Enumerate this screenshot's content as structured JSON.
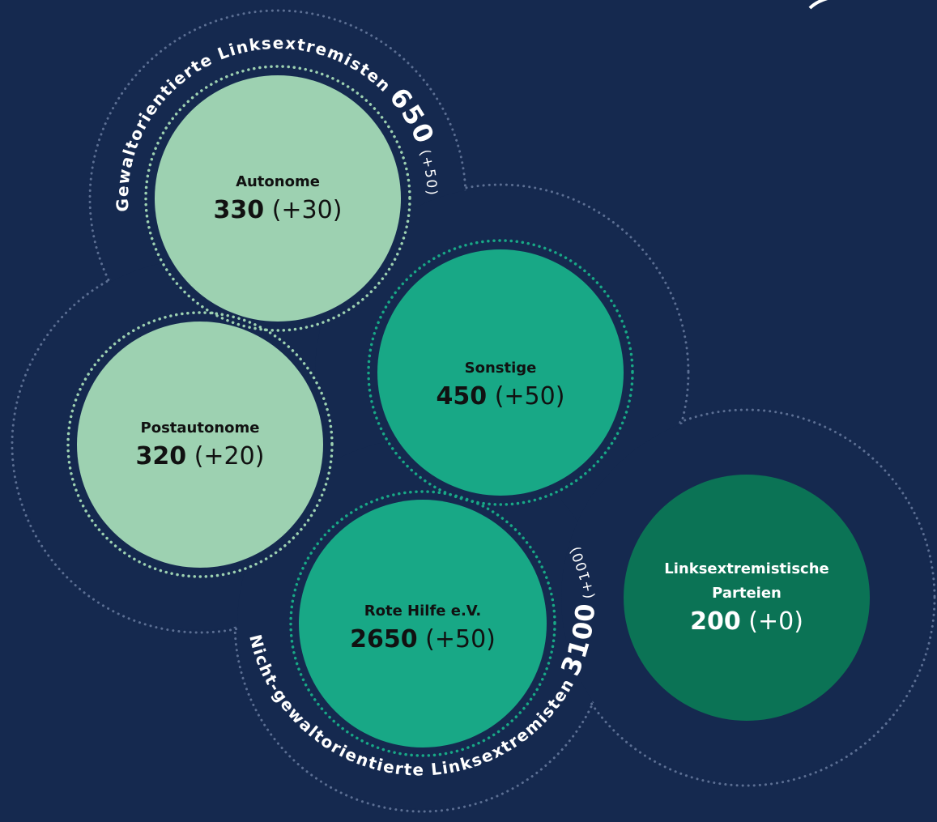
{
  "groups": [
    {
      "label": "Gewaltorientierte Linksextremisten",
      "value": "650",
      "change": "(+50)"
    },
    {
      "label": "Nicht-gewaltorientierte Linksextremisten",
      "value": "3100",
      "change": "(+100)"
    }
  ],
  "nodes": [
    {
      "label": "Autonome",
      "value": "330",
      "change": "(+30)"
    },
    {
      "label": "Postautonome",
      "value": "320",
      "change": "(+20)"
    },
    {
      "label": "Sonstige",
      "value": "450",
      "change": "(+50)"
    },
    {
      "label": "Rote Hilfe e.V.",
      "value": "2650",
      "change": "(+50)"
    },
    {
      "label": "Linksextremistische Parteien",
      "value": "200",
      "change": "(+0)"
    }
  ]
}
